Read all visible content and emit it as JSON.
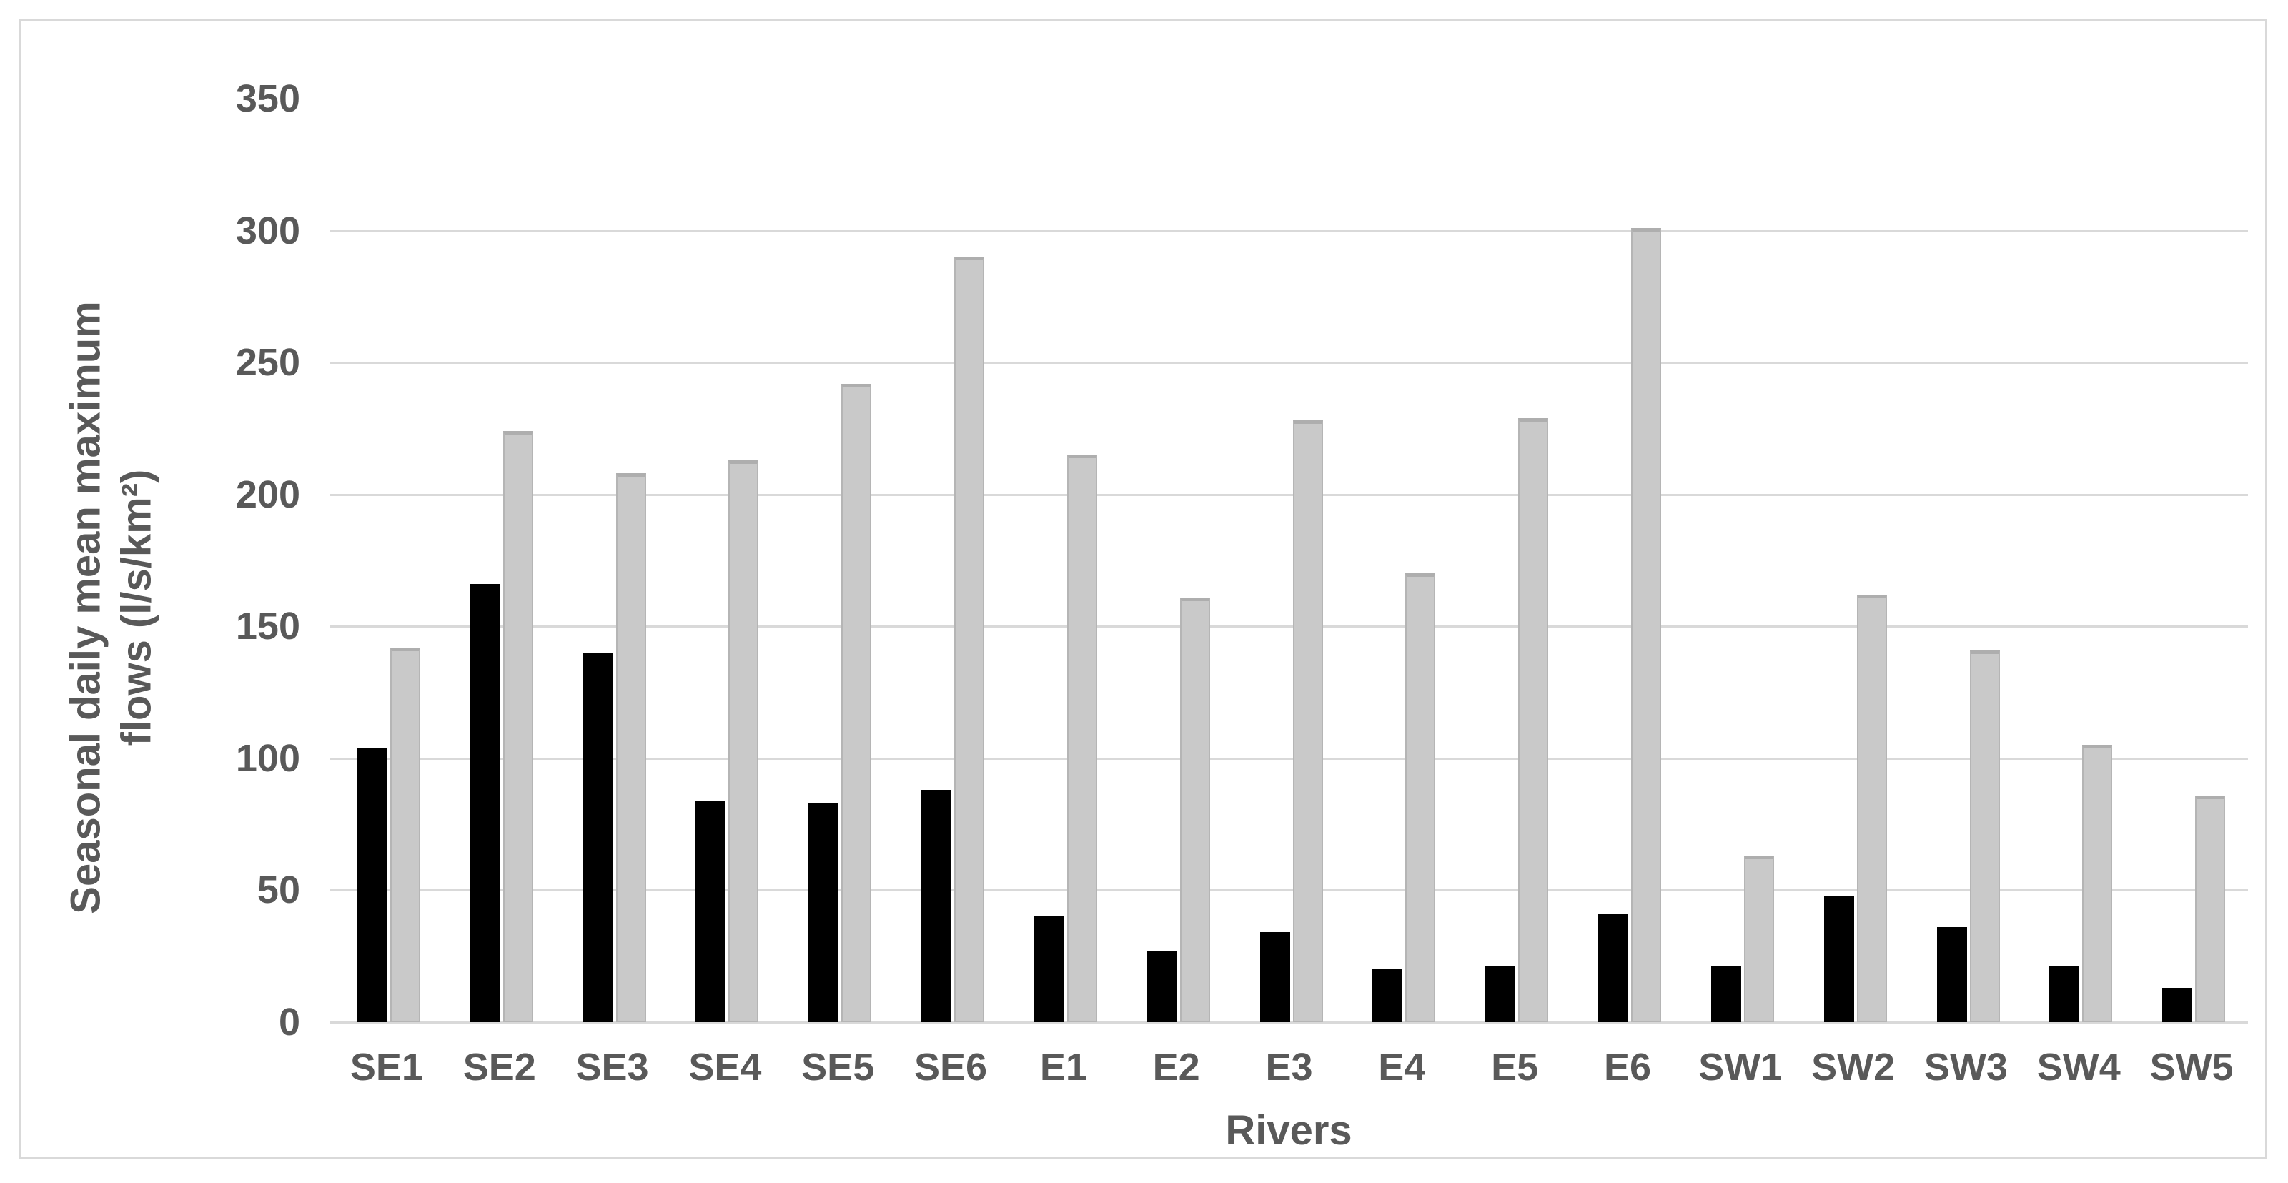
{
  "chart_data": {
    "type": "bar",
    "title": "",
    "xlabel": "Rivers",
    "ylabel": "Seasonal daily mean maximum flows (l/s/km²)",
    "ylabel_lines": [
      "Seasonal daily mean maximum",
      "flows (l/s/km²)"
    ],
    "categories": [
      "SE1",
      "SE2",
      "SE3",
      "SE4",
      "SE5",
      "SE6",
      "E1",
      "E2",
      "E3",
      "E4",
      "E5",
      "E6",
      "SW1",
      "SW2",
      "SW3",
      "SW4",
      "SW5"
    ],
    "series": [
      {
        "name": "series-1-black",
        "color": "#000000",
        "values": [
          104,
          166,
          140,
          84,
          83,
          88,
          40,
          27,
          34,
          20,
          21,
          41,
          21,
          48,
          36,
          21,
          13
        ]
      },
      {
        "name": "series-2-gray",
        "color": "#c9c9c9",
        "values": [
          142,
          224,
          208,
          213,
          242,
          290,
          215,
          161,
          228,
          170,
          229,
          301,
          63,
          162,
          141,
          105,
          86
        ]
      }
    ],
    "ylim": [
      0,
      350
    ],
    "ytick_step": 50,
    "yticks": [
      "0",
      "50",
      "100",
      "150",
      "200",
      "250",
      "300",
      "350"
    ],
    "grid": "horizontal",
    "legend": "none",
    "colors": {
      "gridline": "#d9d9d9",
      "figure_border": "#d9d9d9",
      "axis_text": "#595959",
      "bar_black": "#000000",
      "bar_gray": "#c9c9c9"
    }
  }
}
